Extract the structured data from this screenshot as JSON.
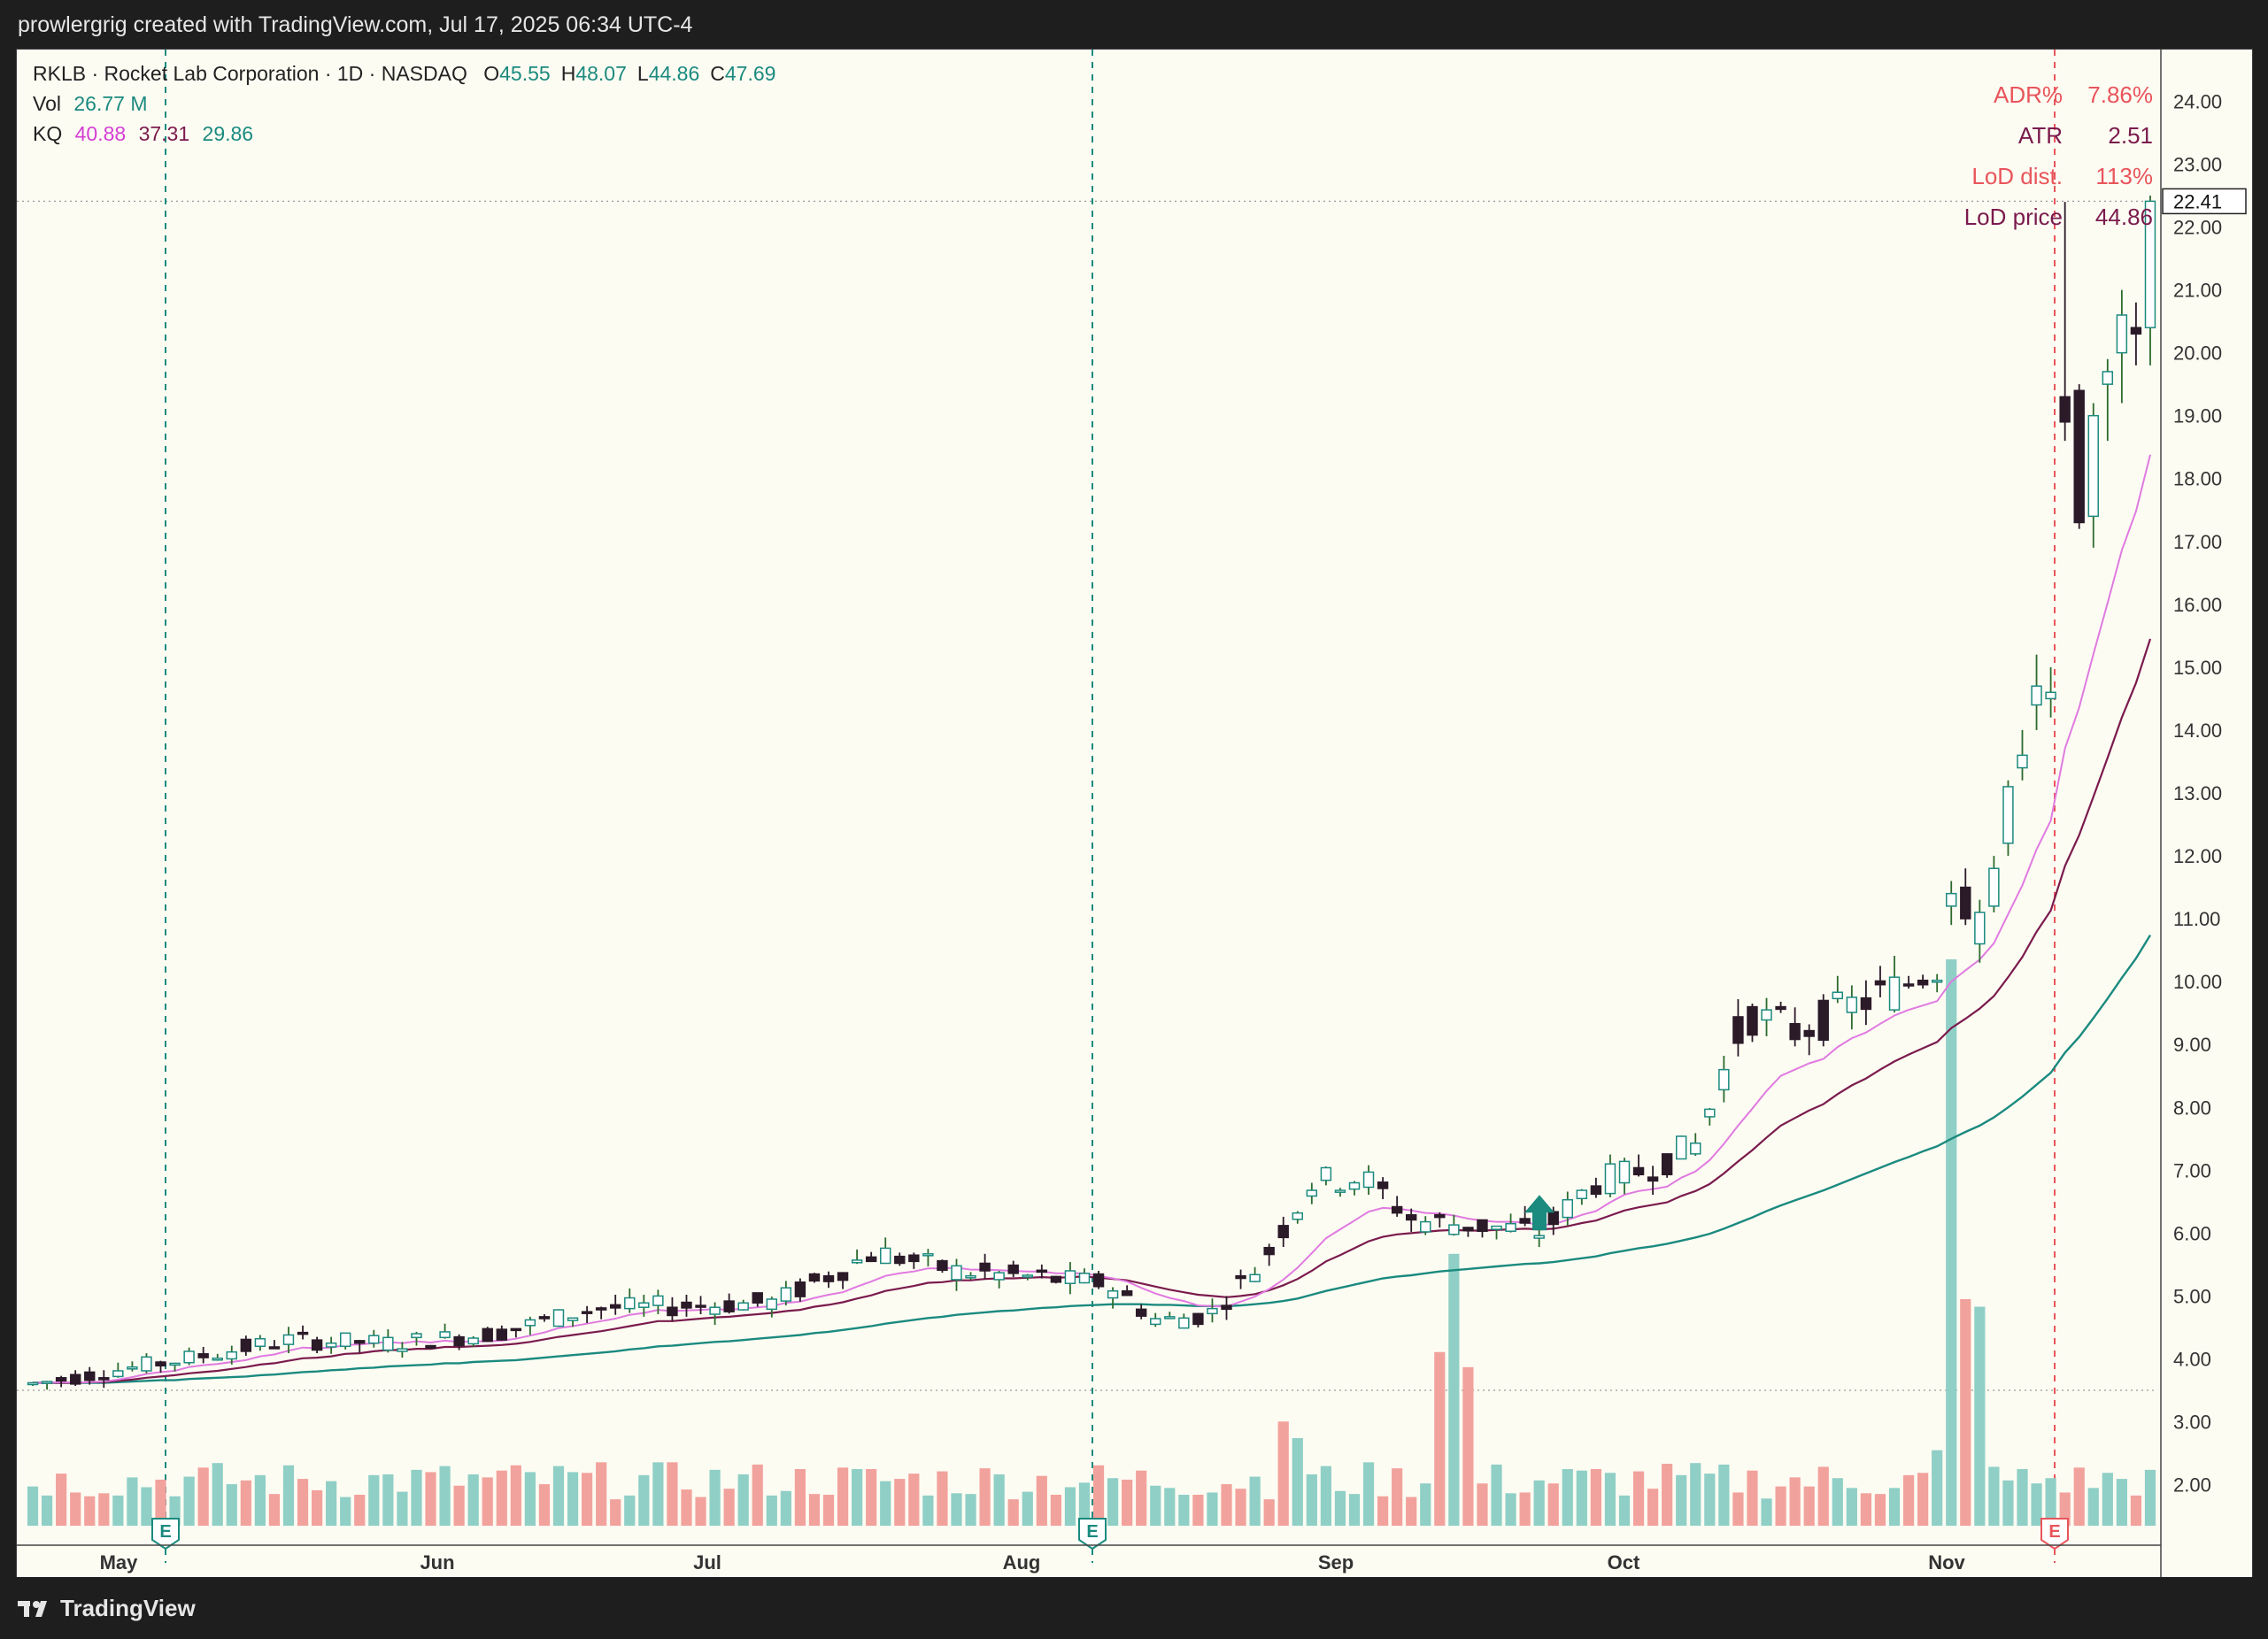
{
  "header": {
    "attribution": "prowlergrig created with TradingView.com, Jul 17, 2025 06:34 UTC-4"
  },
  "footer": {
    "brand": "TradingView"
  },
  "legend": {
    "symbol": "RKLB · Rocket Lab Corporation · 1D · NASDAQ",
    "ohlc": [
      {
        "key": "O",
        "value": "45.55"
      },
      {
        "key": "H",
        "value": "48.07"
      },
      {
        "key": "L",
        "value": "44.86"
      },
      {
        "key": "C",
        "value": "47.69"
      }
    ],
    "vol_label": "Vol",
    "vol_value": "26.77 M",
    "kq_label": "KQ",
    "kq_values": [
      "40.88",
      "37.31",
      "29.86"
    ]
  },
  "stats_table": [
    {
      "label": "ADR%",
      "value": "7.86%",
      "color": "#e8555b"
    },
    {
      "label": "ATR",
      "value": "2.51",
      "color": "#7a1b4d"
    },
    {
      "label": "LoD dist.",
      "value": "113%",
      "color": "#e8555b"
    },
    {
      "label": "LoD price",
      "value": "44.86",
      "color": "#7a1b4d"
    }
  ],
  "colors": {
    "up_body": "#ffffff",
    "up_border": "#1b8a7f",
    "down_body": "#2b1a28",
    "vol_up": "#8fcfc6",
    "vol_down": "#f2a29c",
    "ema_fast": "#e07ae0",
    "ema_mid": "#7a1b4d",
    "ema_slow": "#1b8a7f",
    "marker": "#1b8a7f",
    "earn_red": "#e8555b"
  },
  "chart_data": {
    "type": "candlestick",
    "title": "RKLB · Rocket Lab Corporation · 1D · NASDAQ",
    "y_axis": {
      "ticks": [
        "2.00",
        "3.00",
        "4.00",
        "5.00",
        "6.00",
        "7.00",
        "8.00",
        "9.00",
        "10.00",
        "11.00",
        "12.00",
        "13.00",
        "14.00",
        "15.00",
        "16.00",
        "17.00",
        "18.00",
        "19.00",
        "20.00",
        "21.00",
        "22.00",
        "23.00",
        "24.00"
      ],
      "range": [
        1.6,
        24.4
      ],
      "last_price_label": "22.41",
      "last_price": 22.41
    },
    "x_axis": {
      "labels": [
        "May",
        "Jun",
        "Jul",
        "Aug",
        "Sep",
        "Oct",
        "Nov"
      ]
    },
    "reference_lines": [
      {
        "value": 22.41,
        "style": "dotted"
      },
      {
        "value": 3.5,
        "style": "dotted"
      }
    ],
    "earnings_markers": [
      {
        "label": "E",
        "date": "early May",
        "color": "#1b8a7f"
      },
      {
        "label": "E",
        "date": "early Aug",
        "color": "#1b8a7f"
      },
      {
        "label": "E",
        "date": "mid Nov",
        "color": "#e8555b"
      }
    ],
    "arrow_marker": {
      "date": "mid Sep",
      "direction": "up",
      "price": 6.1
    },
    "ohlc_series": [],
    "volume_series": [],
    "ema_fast": [],
    "ema_mid": [],
    "ema_slow": []
  }
}
